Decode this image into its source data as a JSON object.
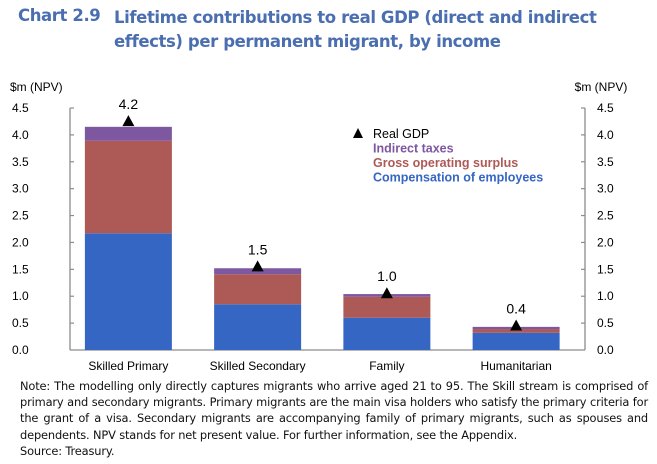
{
  "header": {
    "chart_number": "Chart 2.9",
    "title": "Lifetime contributions to real GDP (direct and indirect effects) per permanent migrant, by income"
  },
  "chart_data": {
    "type": "bar",
    "stacked": true,
    "title": "Lifetime contributions to real GDP (direct and indirect effects) per permanent migrant, by income",
    "ylabel_left": "$m (NPV)",
    "ylabel_right": "$m (NPV)",
    "xlabel": "",
    "ylim": [
      0,
      4.5
    ],
    "yticks": [
      "0.0",
      "0.5",
      "1.0",
      "1.5",
      "2.0",
      "2.5",
      "3.0",
      "3.5",
      "4.0",
      "4.5"
    ],
    "grid": false,
    "legend_position": "top-right",
    "categories": [
      "Skilled Primary",
      "Skilled Secondary",
      "Family",
      "Humanitarian"
    ],
    "series": [
      {
        "name": "Compensation of employees",
        "color": "#3666c4",
        "values": [
          2.17,
          0.85,
          0.6,
          0.32
        ]
      },
      {
        "name": "Gross operating surplus",
        "color": "#ad5a56",
        "values": [
          1.72,
          0.56,
          0.39,
          0.07
        ]
      },
      {
        "name": "Indirect taxes",
        "color": "#7e57a1",
        "values": [
          0.26,
          0.11,
          0.05,
          0.04
        ]
      }
    ],
    "markers": {
      "name": "Real GDP",
      "symbol": "triangle",
      "color": "#000000",
      "values": [
        4.2,
        1.5,
        1.0,
        0.4
      ],
      "labels": [
        "4.2",
        "1.5",
        "1.0",
        "0.4"
      ]
    },
    "legend": [
      {
        "label": "Real GDP",
        "color": "#000000",
        "symbol": "triangle"
      },
      {
        "label": "Indirect taxes",
        "color": "#7e57a1"
      },
      {
        "label": "Gross operating surplus",
        "color": "#ad5a56"
      },
      {
        "label": "Compensation of employees",
        "color": "#3666c4"
      }
    ]
  },
  "notes": {
    "note": "Note: The modelling only directly captures migrants who arrive aged 21 to 95. The Skill stream is comprised of primary and secondary migrants. Primary migrants are the main visa holders who satisfy the primary criteria for the grant of a visa. Secondary migrants are accompanying family of primary migrants, such as spouses and dependents. NPV stands for net present value. For further information, see the Appendix.",
    "source": "Source: Treasury."
  }
}
